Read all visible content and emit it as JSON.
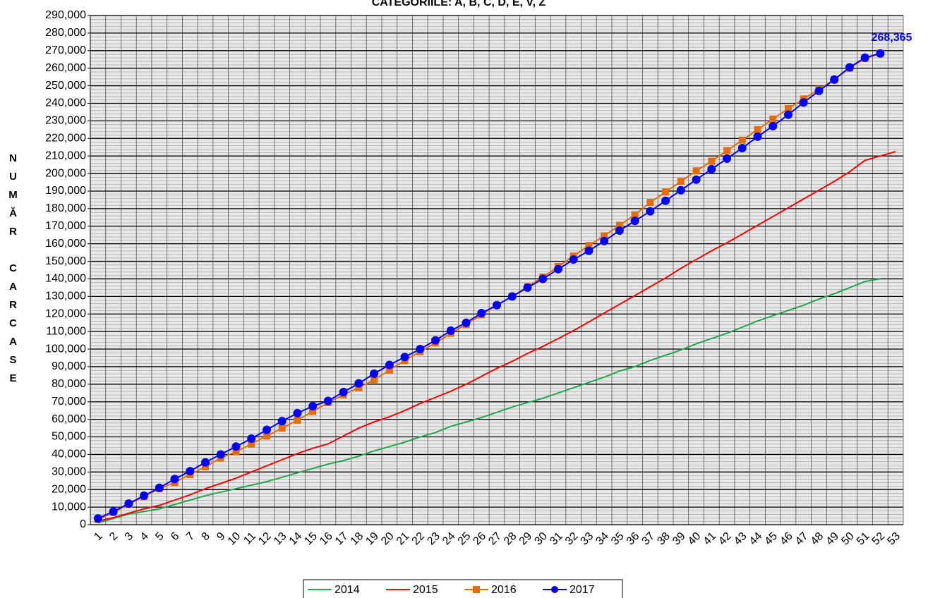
{
  "chart_data": {
    "type": "line",
    "title": "CATEGORIILE: A, B, C, D, E, V, Z",
    "y_label": "NUMĂR CARCASE",
    "categories": [
      "1",
      "2",
      "3",
      "4",
      "5",
      "6",
      "7",
      "8",
      "9",
      "10",
      "11",
      "12",
      "13",
      "14",
      "15",
      "16",
      "17",
      "18",
      "19",
      "20",
      "21",
      "22",
      "23",
      "24",
      "25",
      "26",
      "27",
      "28",
      "29",
      "30",
      "31",
      "32",
      "33",
      "34",
      "35",
      "36",
      "37",
      "38",
      "39",
      "40",
      "41",
      "42",
      "43",
      "44",
      "45",
      "46",
      "47",
      "48",
      "49",
      "50",
      "51",
      "52",
      "53"
    ],
    "series": [
      {
        "name": "2014",
        "color": "#1faa4a",
        "marker": "none",
        "values": [
          1000,
          3500,
          6000,
          7500,
          9000,
          11500,
          14000,
          16500,
          18500,
          20500,
          22500,
          24500,
          27000,
          29500,
          32000,
          34500,
          36500,
          39000,
          42000,
          44500,
          47000,
          50000,
          52500,
          56000,
          58500,
          61000,
          64000,
          67000,
          69500,
          72000,
          75000,
          78000,
          81000,
          84000,
          87500,
          90000,
          93500,
          96500,
          99500,
          103000,
          106000,
          109000,
          112500,
          116000,
          119000,
          122000,
          125000,
          128500,
          131500,
          135000,
          138500,
          140000,
          null
        ]
      },
      {
        "name": "2015",
        "color": "#ff0000",
        "marker": "none",
        "values": [
          2000,
          4000,
          6500,
          9000,
          11000,
          14000,
          17000,
          20500,
          23500,
          26500,
          30000,
          33500,
          37000,
          40500,
          43500,
          46000,
          50500,
          55000,
          58500,
          61500,
          65000,
          69000,
          72500,
          76000,
          80000,
          84500,
          89000,
          93000,
          97500,
          101500,
          106000,
          110500,
          115500,
          120500,
          125500,
          130500,
          135500,
          140500,
          146000,
          151000,
          156000,
          160500,
          165500,
          170500,
          175500,
          180500,
          185500,
          190500,
          195500,
          201000,
          207500,
          210000,
          212500
        ]
      },
      {
        "name": "2016",
        "color": "#e46c0a",
        "marker": "square",
        "values": [
          3000,
          7000,
          11500,
          16000,
          20500,
          24000,
          28500,
          33000,
          38000,
          41500,
          46000,
          50500,
          55000,
          59500,
          64500,
          69500,
          74000,
          78000,
          82500,
          88000,
          93500,
          98500,
          103500,
          109000,
          114000,
          119500,
          125000,
          130000,
          135500,
          141000,
          147000,
          153000,
          159000,
          164500,
          170500,
          176500,
          183500,
          189500,
          195500,
          201500,
          207000,
          213000,
          219000,
          225000,
          231000,
          237000,
          242500,
          248000,
          253500,
          260000,
          265500,
          268500,
          null
        ]
      },
      {
        "name": "2017",
        "color": "#0000ff",
        "marker": "circle",
        "values": [
          3500,
          7500,
          12000,
          16500,
          21000,
          26000,
          30500,
          35500,
          40000,
          44500,
          49000,
          54000,
          59000,
          63500,
          67500,
          70500,
          75500,
          80500,
          86000,
          91000,
          95500,
          100000,
          105000,
          110500,
          115000,
          120500,
          125000,
          130000,
          135000,
          140000,
          145500,
          151000,
          156000,
          161500,
          167500,
          173000,
          178500,
          184500,
          190500,
          196500,
          202500,
          208500,
          214500,
          221000,
          227000,
          233500,
          240500,
          247000,
          253500,
          260500,
          266000,
          268365,
          null
        ],
        "value_labels": [
          null,
          null,
          null,
          null,
          null,
          null,
          null,
          null,
          null,
          null,
          null,
          null,
          null,
          null,
          null,
          null,
          null,
          null,
          null,
          null,
          null,
          null,
          null,
          null,
          null,
          null,
          null,
          null,
          null,
          null,
          null,
          null,
          null,
          null,
          null,
          null,
          null,
          null,
          null,
          null,
          null,
          null,
          null,
          null,
          null,
          null,
          null,
          null,
          null,
          null,
          null,
          "268,365",
          null
        ]
      }
    ],
    "ylim": [
      0,
      290000
    ],
    "yticks": [
      0,
      {
        "value": 10000,
        "label": "10,000"
      },
      {
        "value": 20000,
        "label": "20,000"
      },
      {
        "value": 30000,
        "label": "30,000"
      },
      {
        "value": 40000,
        "label": "40,000"
      },
      {
        "value": 50000,
        "label": "50,000"
      },
      {
        "value": 60000,
        "label": "60,000"
      },
      {
        "value": 70000,
        "label": "70,000"
      },
      {
        "value": 80000,
        "label": "80,000"
      },
      {
        "value": 90000,
        "label": "90,000"
      },
      {
        "value": 100000,
        "label": "100,000"
      },
      {
        "value": 110000,
        "label": "110,000"
      },
      {
        "value": 120000,
        "label": "120,000"
      },
      {
        "value": 130000,
        "label": "130,000"
      },
      {
        "value": 140000,
        "label": "140,000"
      },
      {
        "value": 150000,
        "label": "150,000"
      },
      {
        "value": 160000,
        "label": "160,000"
      },
      {
        "value": 170000,
        "label": "170,000"
      },
      {
        "value": 180000,
        "label": "180,000"
      },
      {
        "value": 190000,
        "label": "190,000"
      },
      {
        "value": 200000,
        "label": "200,000"
      },
      {
        "value": 210000,
        "label": "210,000"
      },
      {
        "value": 220000,
        "label": "220,000"
      },
      {
        "value": 230000,
        "label": "230,000"
      },
      {
        "value": 240000,
        "label": "240,000"
      },
      {
        "value": 250000,
        "label": "250,000"
      },
      {
        "value": 260000,
        "label": "260,000"
      },
      {
        "value": 270000,
        "label": "270,000"
      },
      {
        "value": 280000,
        "label": "280,000"
      },
      {
        "value": 290000,
        "label": "290,000"
      }
    ],
    "grid": true
  }
}
